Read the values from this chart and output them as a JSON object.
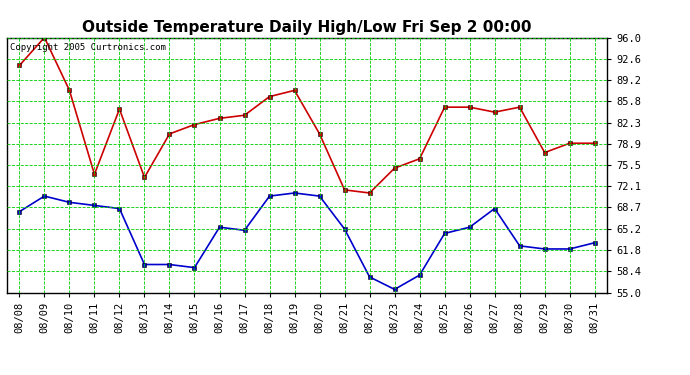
{
  "title": "Outside Temperature Daily High/Low Fri Sep 2 00:00",
  "copyright": "Copyright 2005 Curtronics.com",
  "dates": [
    "08/08",
    "08/09",
    "08/10",
    "08/11",
    "08/12",
    "08/13",
    "08/14",
    "08/15",
    "08/16",
    "08/17",
    "08/18",
    "08/19",
    "08/20",
    "08/21",
    "08/22",
    "08/23",
    "08/24",
    "08/25",
    "08/26",
    "08/27",
    "08/28",
    "08/29",
    "08/30",
    "08/31"
  ],
  "high_temps": [
    91.5,
    96.0,
    87.5,
    74.0,
    84.5,
    73.5,
    80.5,
    82.0,
    83.0,
    83.5,
    86.5,
    87.5,
    80.5,
    71.5,
    71.0,
    75.0,
    76.5,
    84.8,
    84.8,
    84.0,
    84.8,
    77.5,
    79.0,
    79.0
  ],
  "low_temps": [
    68.0,
    70.5,
    69.5,
    69.0,
    68.5,
    59.5,
    59.5,
    59.0,
    65.5,
    65.0,
    70.5,
    71.0,
    70.5,
    65.2,
    57.5,
    55.5,
    57.8,
    64.5,
    65.5,
    68.5,
    62.5,
    62.0,
    62.0,
    63.0
  ],
  "high_color": "#cc0000",
  "low_color": "#0000cc",
  "bg_color": "#ffffff",
  "plot_bg_color": "#ffffff",
  "grid_color": "#00cc00",
  "title_color": "#000000",
  "ylabel_right_ticks": [
    55.0,
    58.4,
    61.8,
    65.2,
    68.7,
    72.1,
    75.5,
    78.9,
    82.3,
    85.8,
    89.2,
    92.6,
    96.0
  ],
  "ylim": [
    55.0,
    96.0
  ],
  "marker": "s",
  "marker_size": 2.5,
  "line_width": 1.2,
  "title_fontsize": 11,
  "tick_fontsize": 7.5,
  "copyright_fontsize": 6.5
}
